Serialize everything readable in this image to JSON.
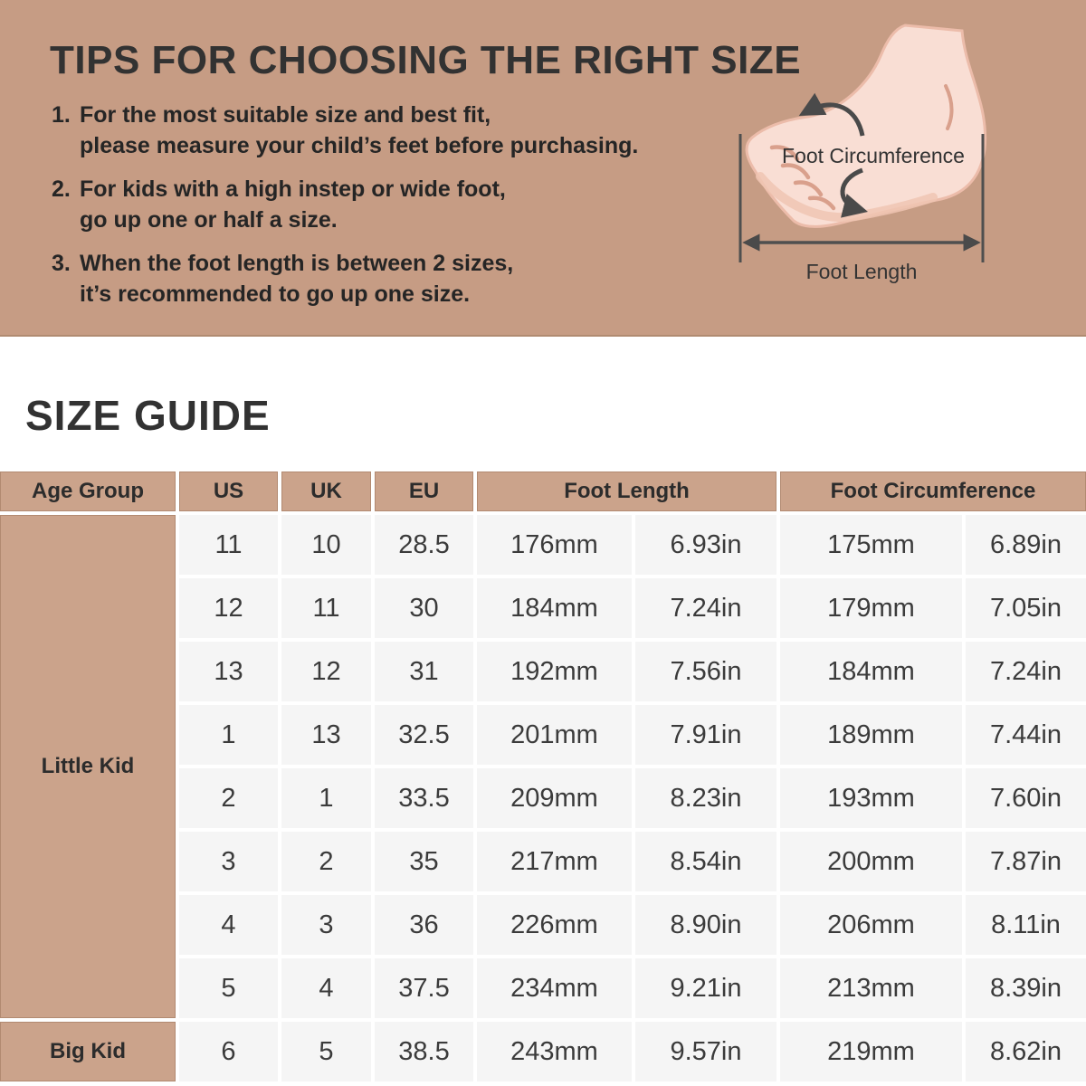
{
  "colors": {
    "tan_background": "#c69c84",
    "tan_cell": "#cba38b",
    "data_cell": "#f5f5f5",
    "dark_text": "#323232",
    "foot_fill": "#f9ded4",
    "foot_outline": "#ecbcaa",
    "arrow": "#4a4a4a"
  },
  "tips_section": {
    "title": "TIPS FOR CHOOSING THE RIGHT SIZE",
    "tips": [
      {
        "num": "1.",
        "line1": "For the most suitable size and best fit,",
        "line2": "please measure your child’s feet before purchasing."
      },
      {
        "num": "2.",
        "line1": "For kids with a high instep or wide foot,",
        "line2": "go up one or half a size."
      },
      {
        "num": "3.",
        "line1": "When the foot length is between 2 sizes,",
        "line2": "it’s recommended to go up one size."
      }
    ],
    "foot_diagram": {
      "circumference_label": "Foot Circumference",
      "length_label": "Foot Length"
    }
  },
  "size_guide": {
    "title": "SIZE GUIDE",
    "table": {
      "headers": {
        "age_group": "Age Group",
        "us": "US",
        "uk": "UK",
        "eu": "EU",
        "foot_length": "Foot Length",
        "foot_circumference": "Foot Circumference"
      },
      "groups": [
        {
          "label": "Little Kid",
          "row_span": 8
        },
        {
          "label": "Big Kid",
          "row_span": 1
        }
      ],
      "rows": [
        {
          "us": "11",
          "uk": "10",
          "eu": "28.5",
          "foot_length_mm": "176mm",
          "foot_length_in": "6.93in",
          "foot_circ_mm": "175mm",
          "foot_circ_in": "6.89in"
        },
        {
          "us": "12",
          "uk": "11",
          "eu": "30",
          "foot_length_mm": "184mm",
          "foot_length_in": "7.24in",
          "foot_circ_mm": "179mm",
          "foot_circ_in": "7.05in"
        },
        {
          "us": "13",
          "uk": "12",
          "eu": "31",
          "foot_length_mm": "192mm",
          "foot_length_in": "7.56in",
          "foot_circ_mm": "184mm",
          "foot_circ_in": "7.24in"
        },
        {
          "us": "1",
          "uk": "13",
          "eu": "32.5",
          "foot_length_mm": "201mm",
          "foot_length_in": "7.91in",
          "foot_circ_mm": "189mm",
          "foot_circ_in": "7.44in"
        },
        {
          "us": "2",
          "uk": "1",
          "eu": "33.5",
          "foot_length_mm": "209mm",
          "foot_length_in": "8.23in",
          "foot_circ_mm": "193mm",
          "foot_circ_in": "7.60in"
        },
        {
          "us": "3",
          "uk": "2",
          "eu": "35",
          "foot_length_mm": "217mm",
          "foot_length_in": "8.54in",
          "foot_circ_mm": "200mm",
          "foot_circ_in": "7.87in"
        },
        {
          "us": "4",
          "uk": "3",
          "eu": "36",
          "foot_length_mm": "226mm",
          "foot_length_in": "8.90in",
          "foot_circ_mm": "206mm",
          "foot_circ_in": "8.11in"
        },
        {
          "us": "5",
          "uk": "4",
          "eu": "37.5",
          "foot_length_mm": "234mm",
          "foot_length_in": "9.21in",
          "foot_circ_mm": "213mm",
          "foot_circ_in": "8.39in"
        },
        {
          "us": "6",
          "uk": "5",
          "eu": "38.5",
          "foot_length_mm": "243mm",
          "foot_length_in": "9.57in",
          "foot_circ_mm": "219mm",
          "foot_circ_in": "8.62in"
        }
      ]
    }
  },
  "chart_data": {
    "type": "table",
    "title": "SIZE GUIDE",
    "columns": [
      "Age Group",
      "US",
      "UK",
      "EU",
      "Foot Length (mm)",
      "Foot Length (in)",
      "Foot Circumference (mm)",
      "Foot Circumference (in)"
    ],
    "rows": [
      [
        "Little Kid",
        "11",
        "10",
        "28.5",
        "176mm",
        "6.93in",
        "175mm",
        "6.89in"
      ],
      [
        "Little Kid",
        "12",
        "11",
        "30",
        "184mm",
        "7.24in",
        "179mm",
        "7.05in"
      ],
      [
        "Little Kid",
        "13",
        "12",
        "31",
        "192mm",
        "7.56in",
        "184mm",
        "7.24in"
      ],
      [
        "Little Kid",
        "1",
        "13",
        "32.5",
        "201mm",
        "7.91in",
        "189mm",
        "7.44in"
      ],
      [
        "Little Kid",
        "2",
        "1",
        "33.5",
        "209mm",
        "8.23in",
        "193mm",
        "7.60in"
      ],
      [
        "Little Kid",
        "3",
        "2",
        "35",
        "217mm",
        "8.54in",
        "200mm",
        "7.87in"
      ],
      [
        "Little Kid",
        "4",
        "3",
        "36",
        "226mm",
        "8.90in",
        "206mm",
        "8.11in"
      ],
      [
        "Little Kid",
        "5",
        "4",
        "37.5",
        "234mm",
        "9.21in",
        "213mm",
        "8.39in"
      ],
      [
        "Big Kid",
        "6",
        "5",
        "38.5",
        "243mm",
        "9.57in",
        "219mm",
        "8.62in"
      ]
    ]
  }
}
